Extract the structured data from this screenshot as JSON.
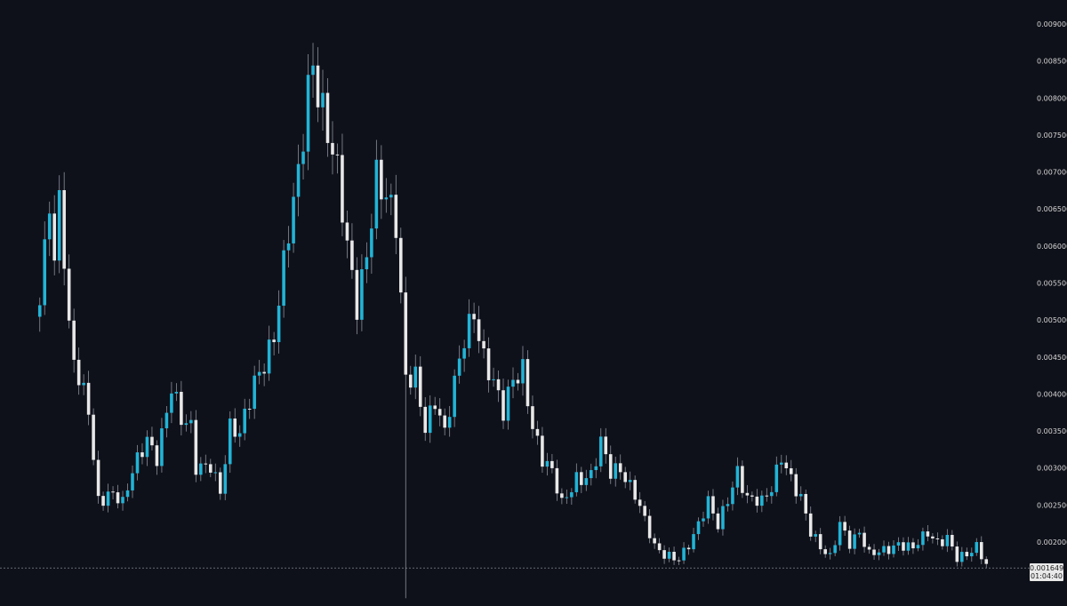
{
  "colors": {
    "background": "#0f111a",
    "up": "#22b4d6",
    "down": "#e8e8e8",
    "wick": "#8a8f99",
    "grid": "#9aa0a6"
  },
  "last_price": {
    "value": "0.001649",
    "countdown": "01:04:40"
  },
  "chart_data": {
    "type": "candlestick",
    "title": "",
    "xlabel": "",
    "ylabel": "",
    "ylim": [
      0.00135,
      0.0091
    ],
    "yaxis": {
      "position": "right",
      "ticks": [
        "0.002000",
        "0.002500",
        "0.003000",
        "0.003500",
        "0.004000",
        "0.004500",
        "0.005000",
        "0.005500",
        "0.006000",
        "0.006500",
        "0.007000",
        "0.007500",
        "0.008000",
        "0.008500",
        "0.009000"
      ]
    },
    "grid": false,
    "last_price_line": 0.001649,
    "anchors": [
      [
        0,
        0.0052
      ],
      [
        2,
        0.0068
      ],
      [
        3,
        0.0058
      ],
      [
        4,
        0.0068
      ],
      [
        5,
        0.0059
      ],
      [
        6,
        0.0048
      ],
      [
        8,
        0.0041
      ],
      [
        10,
        0.0038
      ],
      [
        11,
        0.0031
      ],
      [
        12,
        0.0026
      ],
      [
        15,
        0.0027
      ],
      [
        17,
        0.0025
      ],
      [
        19,
        0.0029
      ],
      [
        22,
        0.0034
      ],
      [
        24,
        0.0032
      ],
      [
        27,
        0.0041
      ],
      [
        29,
        0.0036
      ],
      [
        31,
        0.0035
      ],
      [
        32,
        0.003
      ],
      [
        35,
        0.0031
      ],
      [
        37,
        0.0027
      ],
      [
        39,
        0.0035
      ],
      [
        41,
        0.0034
      ],
      [
        44,
        0.0042
      ],
      [
        48,
        0.0048
      ],
      [
        51,
        0.0061
      ],
      [
        53,
        0.0069
      ],
      [
        55,
        0.0082
      ],
      [
        56,
        0.0086
      ],
      [
        58,
        0.0079
      ],
      [
        61,
        0.0069
      ],
      [
        63,
        0.0059
      ],
      [
        65,
        0.0052
      ],
      [
        67,
        0.006
      ],
      [
        69,
        0.007
      ],
      [
        71,
        0.0066
      ],
      [
        73,
        0.0062
      ],
      [
        75,
        0.0042
      ],
      [
        77,
        0.0043
      ],
      [
        79,
        0.0036
      ],
      [
        81,
        0.0039
      ],
      [
        83,
        0.0034
      ],
      [
        85,
        0.0041
      ],
      [
        87,
        0.0048
      ],
      [
        89,
        0.0052
      ],
      [
        91,
        0.0045
      ],
      [
        93,
        0.0041
      ],
      [
        95,
        0.0037
      ],
      [
        97,
        0.0042
      ],
      [
        99,
        0.0044
      ],
      [
        101,
        0.0036
      ],
      [
        103,
        0.0031
      ],
      [
        105,
        0.0029
      ],
      [
        107,
        0.0025
      ],
      [
        110,
        0.0029
      ],
      [
        113,
        0.0029
      ],
      [
        115,
        0.0033
      ],
      [
        117,
        0.0029
      ],
      [
        119,
        0.003
      ],
      [
        122,
        0.0027
      ],
      [
        124,
        0.0023
      ],
      [
        126,
        0.0019
      ],
      [
        128,
        0.0018
      ],
      [
        131,
        0.0018
      ],
      [
        134,
        0.0021
      ],
      [
        137,
        0.0025
      ],
      [
        139,
        0.0022
      ],
      [
        141,
        0.0026
      ],
      [
        143,
        0.003
      ],
      [
        145,
        0.0026
      ],
      [
        148,
        0.0025
      ],
      [
        150,
        0.0027
      ],
      [
        152,
        0.0032
      ],
      [
        154,
        0.0029
      ],
      [
        156,
        0.0026
      ],
      [
        158,
        0.0021
      ],
      [
        160,
        0.0019
      ],
      [
        162,
        0.0018
      ],
      [
        164,
        0.0023
      ],
      [
        166,
        0.002
      ],
      [
        168,
        0.0021
      ],
      [
        170,
        0.0018
      ],
      [
        173,
        0.0019
      ],
      [
        176,
        0.002
      ],
      [
        179,
        0.0019
      ],
      [
        182,
        0.0021
      ],
      [
        184,
        0.002
      ],
      [
        186,
        0.0021
      ],
      [
        188,
        0.0018
      ],
      [
        190,
        0.0018
      ],
      [
        192,
        0.0019
      ],
      [
        194,
        0.0017
      ]
    ],
    "candle_count": 195
  }
}
